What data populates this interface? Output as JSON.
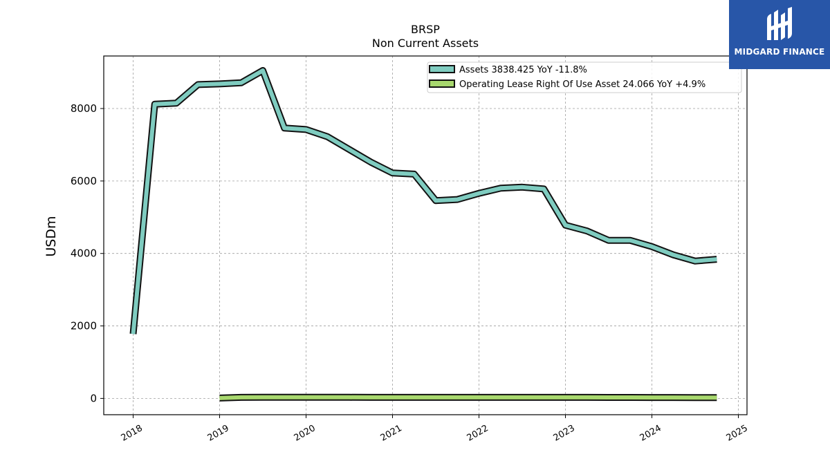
{
  "brand": {
    "name": "MIDGARD FINANCE",
    "color": "#2856a8"
  },
  "chart_data": {
    "type": "line",
    "title": "BRSP",
    "subtitle": "Non Current  Assets",
    "xlabel": "",
    "ylabel": "USDm",
    "xlim": [
      2017.66,
      2025.1
    ],
    "ylim": [
      -450,
      9450
    ],
    "x_ticks": [
      "2018",
      "2019",
      "2020",
      "2021",
      "2022",
      "2023",
      "2024",
      "2025"
    ],
    "y_ticks": [
      0,
      2000,
      4000,
      6000,
      8000
    ],
    "grid": true,
    "legend_position": "top-right",
    "series": [
      {
        "name": "Assets  3838.425 YoY -11.8%",
        "color": "#7fccc0",
        "x": [
          2018.0,
          2018.25,
          2018.5,
          2018.75,
          2019.0,
          2019.25,
          2019.5,
          2019.75,
          2020.0,
          2020.25,
          2020.5,
          2020.75,
          2021.0,
          2021.25,
          2021.5,
          2021.75,
          2022.0,
          2022.25,
          2022.5,
          2022.75,
          2023.0,
          2023.25,
          2023.5,
          2023.75,
          2024.0,
          2024.25,
          2024.5,
          2024.75
        ],
        "values": [
          1780,
          8120,
          8150,
          8660,
          8680,
          8710,
          9050,
          7460,
          7420,
          7220,
          6870,
          6520,
          6220,
          6190,
          5460,
          5490,
          5660,
          5800,
          5830,
          5780,
          4780,
          4620,
          4360,
          4360,
          4190,
          3960,
          3790,
          3840
        ]
      },
      {
        "name": "Operating Lease Right Of Use Asset  24.066 YoY +4.9%",
        "color": "#a8d86e",
        "x": [
          2019.0,
          2019.25,
          2019.5,
          2019.75,
          2020.0,
          2020.25,
          2020.5,
          2020.75,
          2021.0,
          2021.25,
          2021.5,
          2021.75,
          2022.0,
          2022.25,
          2022.5,
          2022.75,
          2023.0,
          2023.25,
          2023.5,
          2023.75,
          2024.0,
          2024.25,
          2024.5,
          2024.75
        ],
        "values": [
          10,
          28,
          30,
          30,
          30,
          30,
          30,
          29,
          29,
          28,
          29,
          29,
          29,
          29,
          29,
          29,
          28,
          28,
          27,
          26,
          25,
          25,
          24,
          24
        ]
      }
    ]
  }
}
